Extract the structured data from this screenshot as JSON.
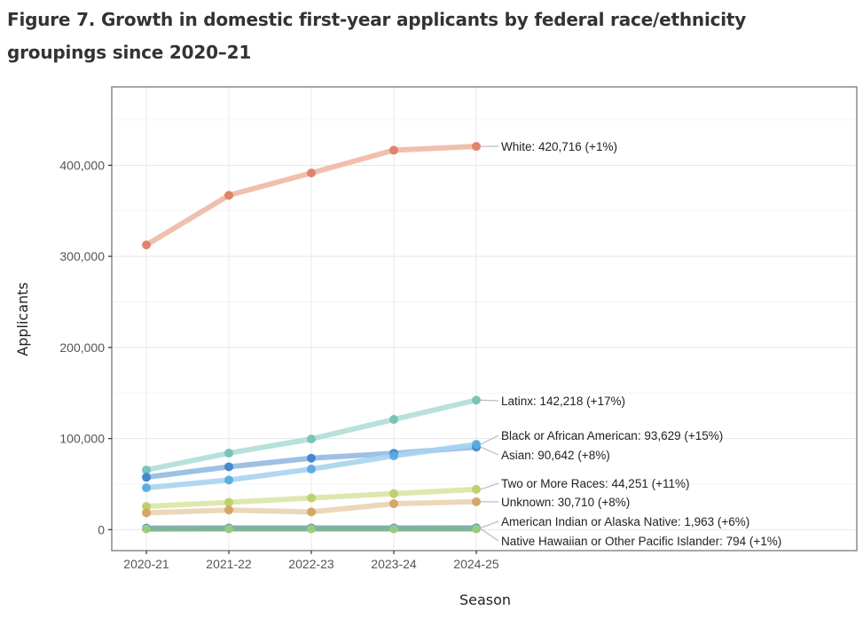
{
  "figure": {
    "title": "Figure 7. Growth in domestic first-year applicants by federal race/ethnicity groupings since 2020–21"
  },
  "chart_data": {
    "type": "line",
    "title": "Figure 7. Growth in domestic first-year applicants by federal race/ethnicity groupings since 2020–21",
    "xlabel": "Season",
    "ylabel": "Applicants",
    "categories": [
      "2020-21",
      "2021-22",
      "2022-23",
      "2023-24",
      "2024-25"
    ],
    "ylim": [
      -23000,
      486000
    ],
    "yticks": [
      0,
      100000,
      200000,
      300000,
      400000
    ],
    "ytick_labels": [
      "0",
      "100,000",
      "200,000",
      "300,000",
      "400,000"
    ],
    "grid": true,
    "legend": "direct-labels-right",
    "series": [
      {
        "name": "White",
        "label": "White: 420,716 (+1%)",
        "line_color": "#efb8a4",
        "point_color": "#de7f64",
        "values": [
          312500,
          367000,
          391500,
          416500,
          420716
        ]
      },
      {
        "name": "Latinx",
        "label": "Latinx: 142,218 (+17%)",
        "line_color": "#b0ded7",
        "point_color": "#74c2b7",
        "values": [
          65500,
          84000,
          99500,
          121000,
          142218
        ]
      },
      {
        "name": "Asian",
        "label": "Asian: 90,642 (+8%)",
        "line_color": "#94b9e2",
        "point_color": "#3f85cb",
        "values": [
          57500,
          69000,
          78500,
          83800,
          90642
        ]
      },
      {
        "name": "Black or African American",
        "label": "Black or African American: 93,629 (+15%)",
        "line_color": "#a9d3f0",
        "point_color": "#5aabdf",
        "values": [
          46000,
          54500,
          66500,
          81000,
          93629
        ]
      },
      {
        "name": "Two or More Races",
        "label": "Two or More Races: 44,251 (+11%)",
        "line_color": "#d9e5a6",
        "point_color": "#bdcf68",
        "values": [
          25500,
          30000,
          34800,
          39500,
          44251
        ]
      },
      {
        "name": "Unknown",
        "label": "Unknown: 30,710 (+8%)",
        "line_color": "#ebd3b2",
        "point_color": "#d3a463",
        "values": [
          18500,
          21500,
          19500,
          28500,
          30710
        ]
      },
      {
        "name": "American Indian or Alaska Native",
        "label": "American Indian or Alaska Native: 1,963 (+6%)",
        "line_color": "#7fa9c9",
        "point_color": "#4d84c4",
        "values": [
          1700,
          1800,
          1850,
          1850,
          1963
        ]
      },
      {
        "name": "Native Hawaiian or Other Pacific Islander",
        "label": "Native Hawaiian or Other Pacific Islander: 794 (+1%)",
        "line_color": "#80b395",
        "point_color": "#9dcf7a",
        "values": [
          780,
          790,
          790,
          786,
          794
        ]
      }
    ]
  }
}
